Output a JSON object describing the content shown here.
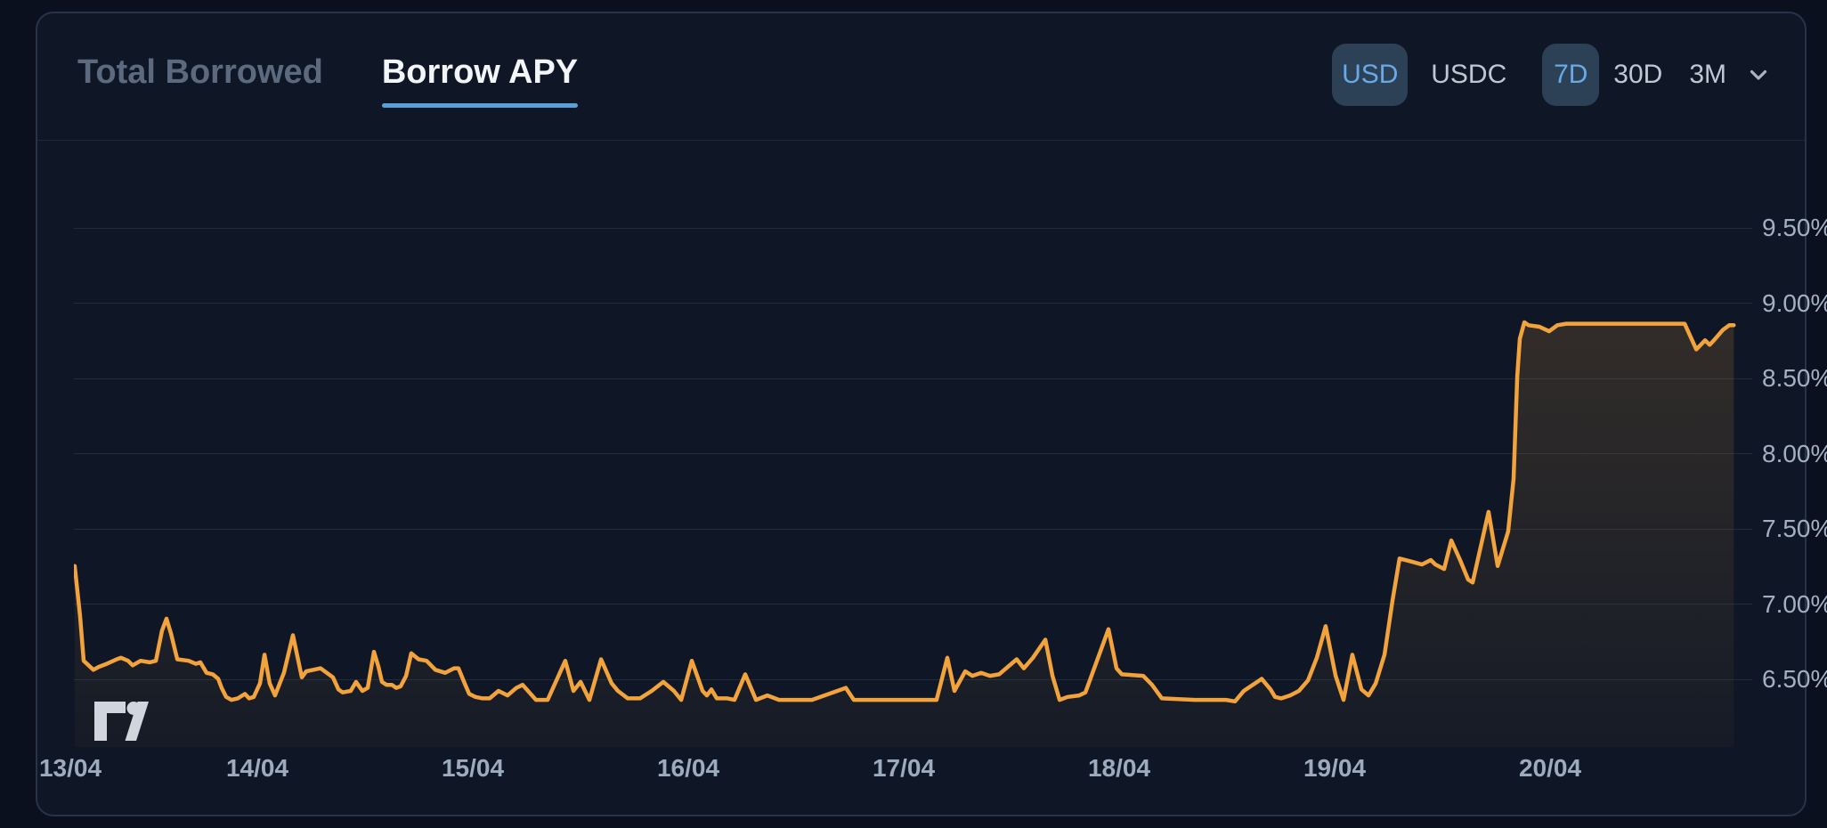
{
  "header": {
    "tabs": [
      {
        "label": "Total Borrowed",
        "active": false
      },
      {
        "label": "Borrow APY",
        "active": true
      }
    ],
    "controls": {
      "currency": [
        {
          "label": "USD",
          "selected": true
        },
        {
          "label": "USDC",
          "selected": false
        }
      ],
      "range": [
        {
          "label": "7D",
          "selected": true
        },
        {
          "label": "30D",
          "selected": false
        },
        {
          "label": "3M",
          "selected": false
        }
      ],
      "range_dropdown_icon": "chevron-down-icon"
    }
  },
  "watermark": {
    "icon": "tradingview-logo"
  },
  "colors": {
    "page_bg": "#0a101d",
    "card_bg": "#0f1726",
    "card_border": "#28334a",
    "grid": "#202b3c",
    "tab_active": "#f2f5f9",
    "tab_inactive": "#5c6a7f",
    "tab_underline": "#5c9ed9",
    "pill_bg_selected": "#2d4156",
    "pill_text_selected": "#68a9e6",
    "pill_text": "#bfc7d2",
    "axis_label": "#a2b0c2",
    "line": "#f2a33c",
    "area_fill": "rgba(242,163,60,0.14)"
  },
  "chart_data": {
    "type": "area",
    "title": "Borrow APY",
    "series_name": "Borrow APY",
    "unit": "%",
    "x_unit": "days since 13/04 00:00",
    "grid": "horizontal",
    "legend": false,
    "y_axis_side": "right",
    "y_range_displayed": [
      6.5,
      9.5
    ],
    "y_ticks": [
      {
        "label": "9.50%",
        "v": 9.5
      },
      {
        "label": "9.00%",
        "v": 9.0
      },
      {
        "label": "8.50%",
        "v": 8.5
      },
      {
        "label": "8.00%",
        "v": 8.0
      },
      {
        "label": "7.50%",
        "v": 7.5
      },
      {
        "label": "7.00%",
        "v": 7.0
      },
      {
        "label": "6.50%",
        "v": 6.5
      }
    ],
    "x_ticks": [
      {
        "label": "13/04",
        "d": 0
      },
      {
        "label": "14/04",
        "d": 1
      },
      {
        "label": "15/04",
        "d": 2
      },
      {
        "label": "16/04",
        "d": 3
      },
      {
        "label": "17/04",
        "d": 4
      },
      {
        "label": "18/04",
        "d": 5
      },
      {
        "label": "19/04",
        "d": 6
      },
      {
        "label": "20/04",
        "d": 7
      }
    ],
    "points": [
      [
        -0.017,
        7.33
      ],
      [
        0.008,
        7.0
      ],
      [
        0.025,
        6.7
      ],
      [
        0.07,
        6.64
      ],
      [
        0.095,
        6.66
      ],
      [
        0.132,
        6.68
      ],
      [
        0.178,
        6.71
      ],
      [
        0.198,
        6.72
      ],
      [
        0.231,
        6.7
      ],
      [
        0.252,
        6.67
      ],
      [
        0.289,
        6.7
      ],
      [
        0.331,
        6.69
      ],
      [
        0.36,
        6.7
      ],
      [
        0.388,
        6.9
      ],
      [
        0.409,
        6.98
      ],
      [
        0.43,
        6.88
      ],
      [
        0.459,
        6.71
      ],
      [
        0.512,
        6.7
      ],
      [
        0.545,
        6.68
      ],
      [
        0.566,
        6.69
      ],
      [
        0.595,
        6.62
      ],
      [
        0.624,
        6.61
      ],
      [
        0.649,
        6.58
      ],
      [
        0.665,
        6.52
      ],
      [
        0.686,
        6.46
      ],
      [
        0.711,
        6.44
      ],
      [
        0.74,
        6.45
      ],
      [
        0.773,
        6.48
      ],
      [
        0.793,
        6.45
      ],
      [
        0.814,
        6.46
      ],
      [
        0.843,
        6.55
      ],
      [
        0.864,
        6.74
      ],
      [
        0.888,
        6.55
      ],
      [
        0.913,
        6.47
      ],
      [
        0.954,
        6.62
      ],
      [
        0.996,
        6.87
      ],
      [
        1.037,
        6.59
      ],
      [
        1.058,
        6.63
      ],
      [
        1.091,
        6.64
      ],
      [
        1.124,
        6.65
      ],
      [
        1.153,
        6.62
      ],
      [
        1.182,
        6.59
      ],
      [
        1.207,
        6.51
      ],
      [
        1.227,
        6.49
      ],
      [
        1.264,
        6.5
      ],
      [
        1.289,
        6.56
      ],
      [
        1.318,
        6.5
      ],
      [
        1.343,
        6.52
      ],
      [
        1.372,
        6.76
      ],
      [
        1.393,
        6.66
      ],
      [
        1.409,
        6.56
      ],
      [
        1.43,
        6.54
      ],
      [
        1.455,
        6.54
      ],
      [
        1.475,
        6.52
      ],
      [
        1.496,
        6.53
      ],
      [
        1.521,
        6.6
      ],
      [
        1.545,
        6.75
      ],
      [
        1.579,
        6.71
      ],
      [
        1.616,
        6.7
      ],
      [
        1.657,
        6.64
      ],
      [
        1.702,
        6.62
      ],
      [
        1.744,
        6.65
      ],
      [
        1.764,
        6.65
      ],
      [
        1.793,
        6.55
      ],
      [
        1.814,
        6.48
      ],
      [
        1.843,
        6.46
      ],
      [
        1.876,
        6.45
      ],
      [
        1.909,
        6.45
      ],
      [
        1.95,
        6.5
      ],
      [
        1.992,
        6.47
      ],
      [
        2.033,
        6.52
      ],
      [
        2.062,
        6.54
      ],
      [
        2.124,
        6.44
      ],
      [
        2.178,
        6.44
      ],
      [
        2.26,
        6.7
      ],
      [
        2.298,
        6.5
      ],
      [
        2.331,
        6.56
      ],
      [
        2.372,
        6.44
      ],
      [
        2.426,
        6.71
      ],
      [
        2.475,
        6.55
      ],
      [
        2.504,
        6.5
      ],
      [
        2.55,
        6.45
      ],
      [
        2.607,
        6.45
      ],
      [
        2.661,
        6.5
      ],
      [
        2.715,
        6.56
      ],
      [
        2.764,
        6.5
      ],
      [
        2.798,
        6.44
      ],
      [
        2.847,
        6.7
      ],
      [
        2.897,
        6.5
      ],
      [
        2.917,
        6.47
      ],
      [
        2.938,
        6.51
      ],
      [
        2.963,
        6.45
      ],
      [
        3.012,
        6.45
      ],
      [
        3.045,
        6.44
      ],
      [
        3.095,
        6.61
      ],
      [
        3.145,
        6.44
      ],
      [
        3.198,
        6.47
      ],
      [
        3.252,
        6.44
      ],
      [
        3.405,
        6.44
      ],
      [
        3.562,
        6.52
      ],
      [
        3.599,
        6.44
      ],
      [
        3.777,
        6.44
      ],
      [
        3.983,
        6.44
      ],
      [
        4.033,
        6.72
      ],
      [
        4.066,
        6.5
      ],
      [
        4.116,
        6.63
      ],
      [
        4.149,
        6.6
      ],
      [
        4.19,
        6.62
      ],
      [
        4.231,
        6.6
      ],
      [
        4.273,
        6.61
      ],
      [
        4.355,
        6.71
      ],
      [
        4.388,
        6.65
      ],
      [
        4.43,
        6.72
      ],
      [
        4.488,
        6.84
      ],
      [
        4.521,
        6.6
      ],
      [
        4.554,
        6.44
      ],
      [
        4.591,
        6.46
      ],
      [
        4.645,
        6.47
      ],
      [
        4.674,
        6.49
      ],
      [
        4.781,
        6.91
      ],
      [
        4.818,
        6.65
      ],
      [
        4.843,
        6.61
      ],
      [
        4.942,
        6.6
      ],
      [
        4.983,
        6.54
      ],
      [
        5.029,
        6.45
      ],
      [
        5.182,
        6.44
      ],
      [
        5.326,
        6.44
      ],
      [
        5.368,
        6.43
      ],
      [
        5.409,
        6.5
      ],
      [
        5.492,
        6.58
      ],
      [
        5.533,
        6.51
      ],
      [
        5.554,
        6.46
      ],
      [
        5.583,
        6.45
      ],
      [
        5.624,
        6.47
      ],
      [
        5.665,
        6.5
      ],
      [
        5.707,
        6.57
      ],
      [
        5.748,
        6.72
      ],
      [
        5.789,
        6.93
      ],
      [
        5.835,
        6.6
      ],
      [
        5.872,
        6.44
      ],
      [
        5.913,
        6.74
      ],
      [
        5.955,
        6.51
      ],
      [
        5.988,
        6.47
      ],
      [
        6.021,
        6.55
      ],
      [
        6.062,
        6.74
      ],
      [
        6.099,
        7.1
      ],
      [
        6.132,
        7.38
      ],
      [
        6.186,
        7.36
      ],
      [
        6.236,
        7.34
      ],
      [
        6.277,
        7.37
      ],
      [
        6.298,
        7.34
      ],
      [
        6.339,
        7.31
      ],
      [
        6.372,
        7.5
      ],
      [
        6.413,
        7.37
      ],
      [
        6.45,
        7.24
      ],
      [
        6.471,
        7.22
      ],
      [
        6.545,
        7.69
      ],
      [
        6.587,
        7.33
      ],
      [
        6.636,
        7.56
      ],
      [
        6.661,
        7.91
      ],
      [
        6.678,
        8.59
      ],
      [
        6.69,
        8.84
      ],
      [
        6.711,
        8.95
      ],
      [
        6.731,
        8.93
      ],
      [
        6.781,
        8.92
      ],
      [
        6.826,
        8.89
      ],
      [
        6.864,
        8.93
      ],
      [
        6.905,
        8.94
      ],
      [
        7.0,
        8.94
      ],
      [
        7.248,
        8.94
      ],
      [
        7.455,
        8.94
      ],
      [
        7.509,
        8.77
      ],
      [
        7.55,
        8.83
      ],
      [
        7.571,
        8.8
      ],
      [
        7.591,
        8.83
      ],
      [
        7.633,
        8.9
      ],
      [
        7.662,
        8.93
      ],
      [
        7.683,
        8.93
      ]
    ]
  }
}
